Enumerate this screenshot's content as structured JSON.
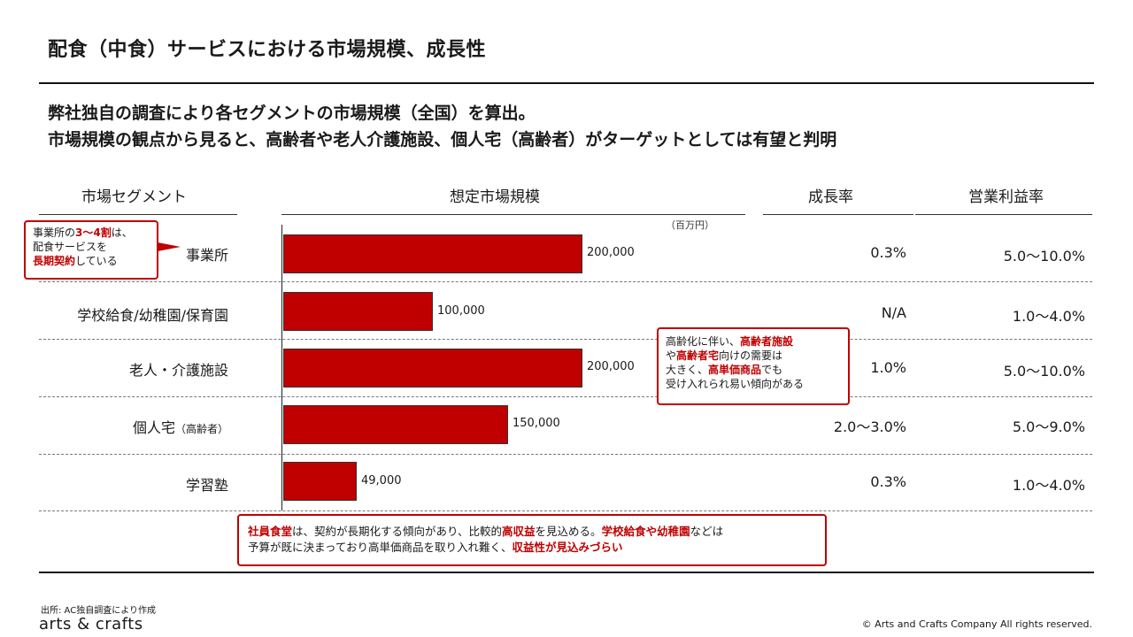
{
  "header": {
    "title": "配食（中食）サービスにおける市場規模、成長性",
    "lead_line1": "弊社独自の調査により各セグメントの市場規模（全国）を算出。",
    "lead_line2": "市場規模の観点から見ると、高齢者や老人介護施設、個人宅（高齢者）がターゲットとしては有望と判明"
  },
  "columns": {
    "segment": "市場セグメント",
    "market_size": "想定市場規模",
    "growth": "成長率",
    "margin": "営業利益率",
    "unit": "（百万円）"
  },
  "chart_data": {
    "type": "bar",
    "orientation": "horizontal",
    "unit": "百万円",
    "categories": [
      "事業所",
      "学校給食/幼稚園/保育園",
      "老人・介護施設",
      "個人宅（高齢者）",
      "学習塾"
    ],
    "values": [
      200000,
      100000,
      200000,
      150000,
      49000
    ],
    "value_labels": [
      "200,000",
      "100,000",
      "200,000",
      "150,000",
      "49,000"
    ],
    "xlim": [
      0,
      200000
    ],
    "title": "想定市場規模",
    "growth_rates": [
      "0.3%",
      "N/A",
      "1.0%",
      "2.0〜3.0%",
      "0.3%"
    ],
    "operating_margins": [
      "5.0〜10.0%",
      "1.0〜4.0%",
      "5.0〜10.0%",
      "5.0〜9.0%",
      "1.0〜4.0%"
    ],
    "bar_color": "#c00000"
  },
  "segments": {
    "s4_main": "個人宅",
    "s4_sub": "（高齢者）"
  },
  "callouts": {
    "office": {
      "t1": "事業所の",
      "t2": "3〜4割",
      "t3": "は、",
      "t4": "配食サービスを",
      "t5": "長期契約",
      "t6": "している"
    },
    "elderly": {
      "t1": "高齢化に伴い、",
      "t2": "高齢者施設",
      "t3": "や",
      "t4": "高齢者宅",
      "t5": "向けの需要は",
      "t6": "大きく、",
      "t7": "高単価商品",
      "t8": "でも",
      "t9": "受け入れられ易い傾向がある"
    },
    "bottom": {
      "t1": "社員食堂",
      "t2": "は、契約が長期化する傾向があり、比較的",
      "t3": "高収益",
      "t4": "を見込める。",
      "t5": "学校給食や幼稚園",
      "t6": "などは",
      "t7": "予算が既に決まっており高単価商品を取り入れ難く、",
      "t8": "収益性が見込みづらい"
    }
  },
  "footer": {
    "source": "出所: AC独自調査により作成",
    "logo": "arts & crafts",
    "copyright": "© Arts and Crafts Company  All rights reserved."
  },
  "colors": {
    "accent": "#c00000",
    "text": "#1a1a1a"
  }
}
